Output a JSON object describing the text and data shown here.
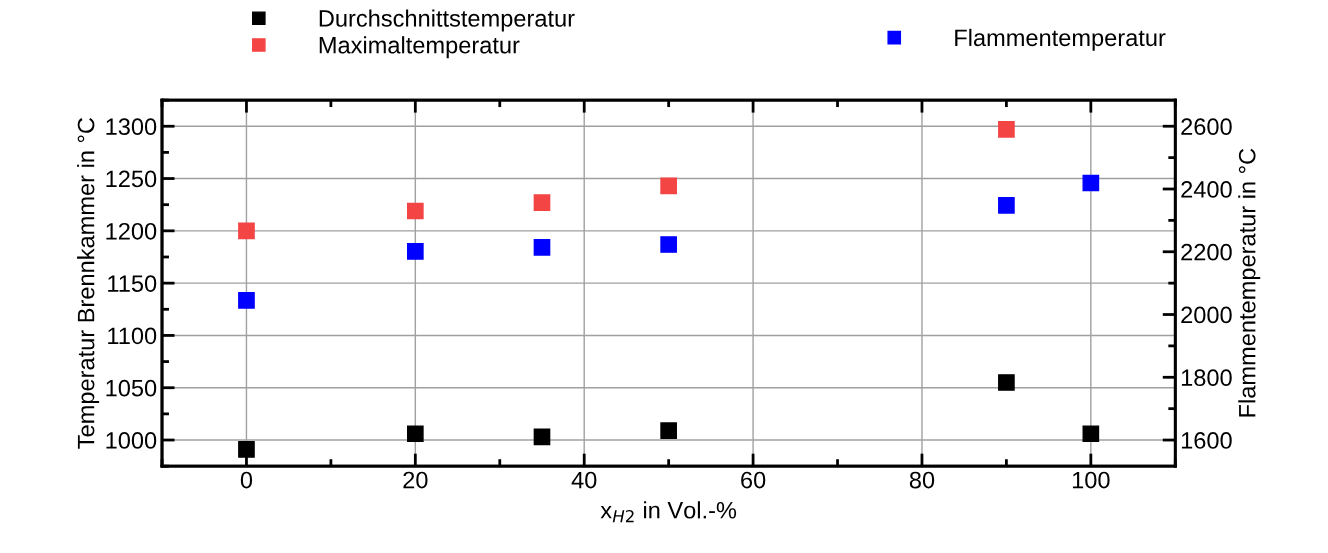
{
  "chart_data": {
    "type": "scatter",
    "xlabel": "x$_{H2}$ in Vol.-%",
    "ylabel": "Temperatur Brennkammer in °C",
    "y2label": "Flammentemperatur in °C",
    "x": [
      0,
      20,
      35,
      50,
      90,
      100
    ],
    "series": [
      {
        "name": "Durchschnittstemperatur",
        "color": "#000000",
        "values": [
          991,
          1006,
          1003,
          1009,
          1055,
          1006
        ]
      },
      {
        "name": "Maximaltemperatur",
        "color": "#f44545",
        "values": [
          1200,
          1219,
          1227,
          1243,
          1297,
          null
        ]
      },
      {
        "name": "Flammentemperatur",
        "color": "#0000ff",
        "axis": "y2",
        "values": [
          2045,
          2201,
          2214,
          2223,
          2348,
          2419
        ]
      }
    ],
    "xlim": [
      -10,
      110
    ],
    "xticks": [
      0,
      20,
      40,
      60,
      80,
      100
    ],
    "ylim": [
      975,
      1325
    ],
    "yticks": [
      1000,
      1050,
      1100,
      1150,
      1200,
      1250,
      1300
    ],
    "y2lim": [
      1516.7,
      2683.3
    ],
    "y2ticks": [
      1600,
      1800,
      2000,
      2200,
      2400,
      2600
    ],
    "grid": true,
    "legend": "top",
    "marker": "square"
  }
}
